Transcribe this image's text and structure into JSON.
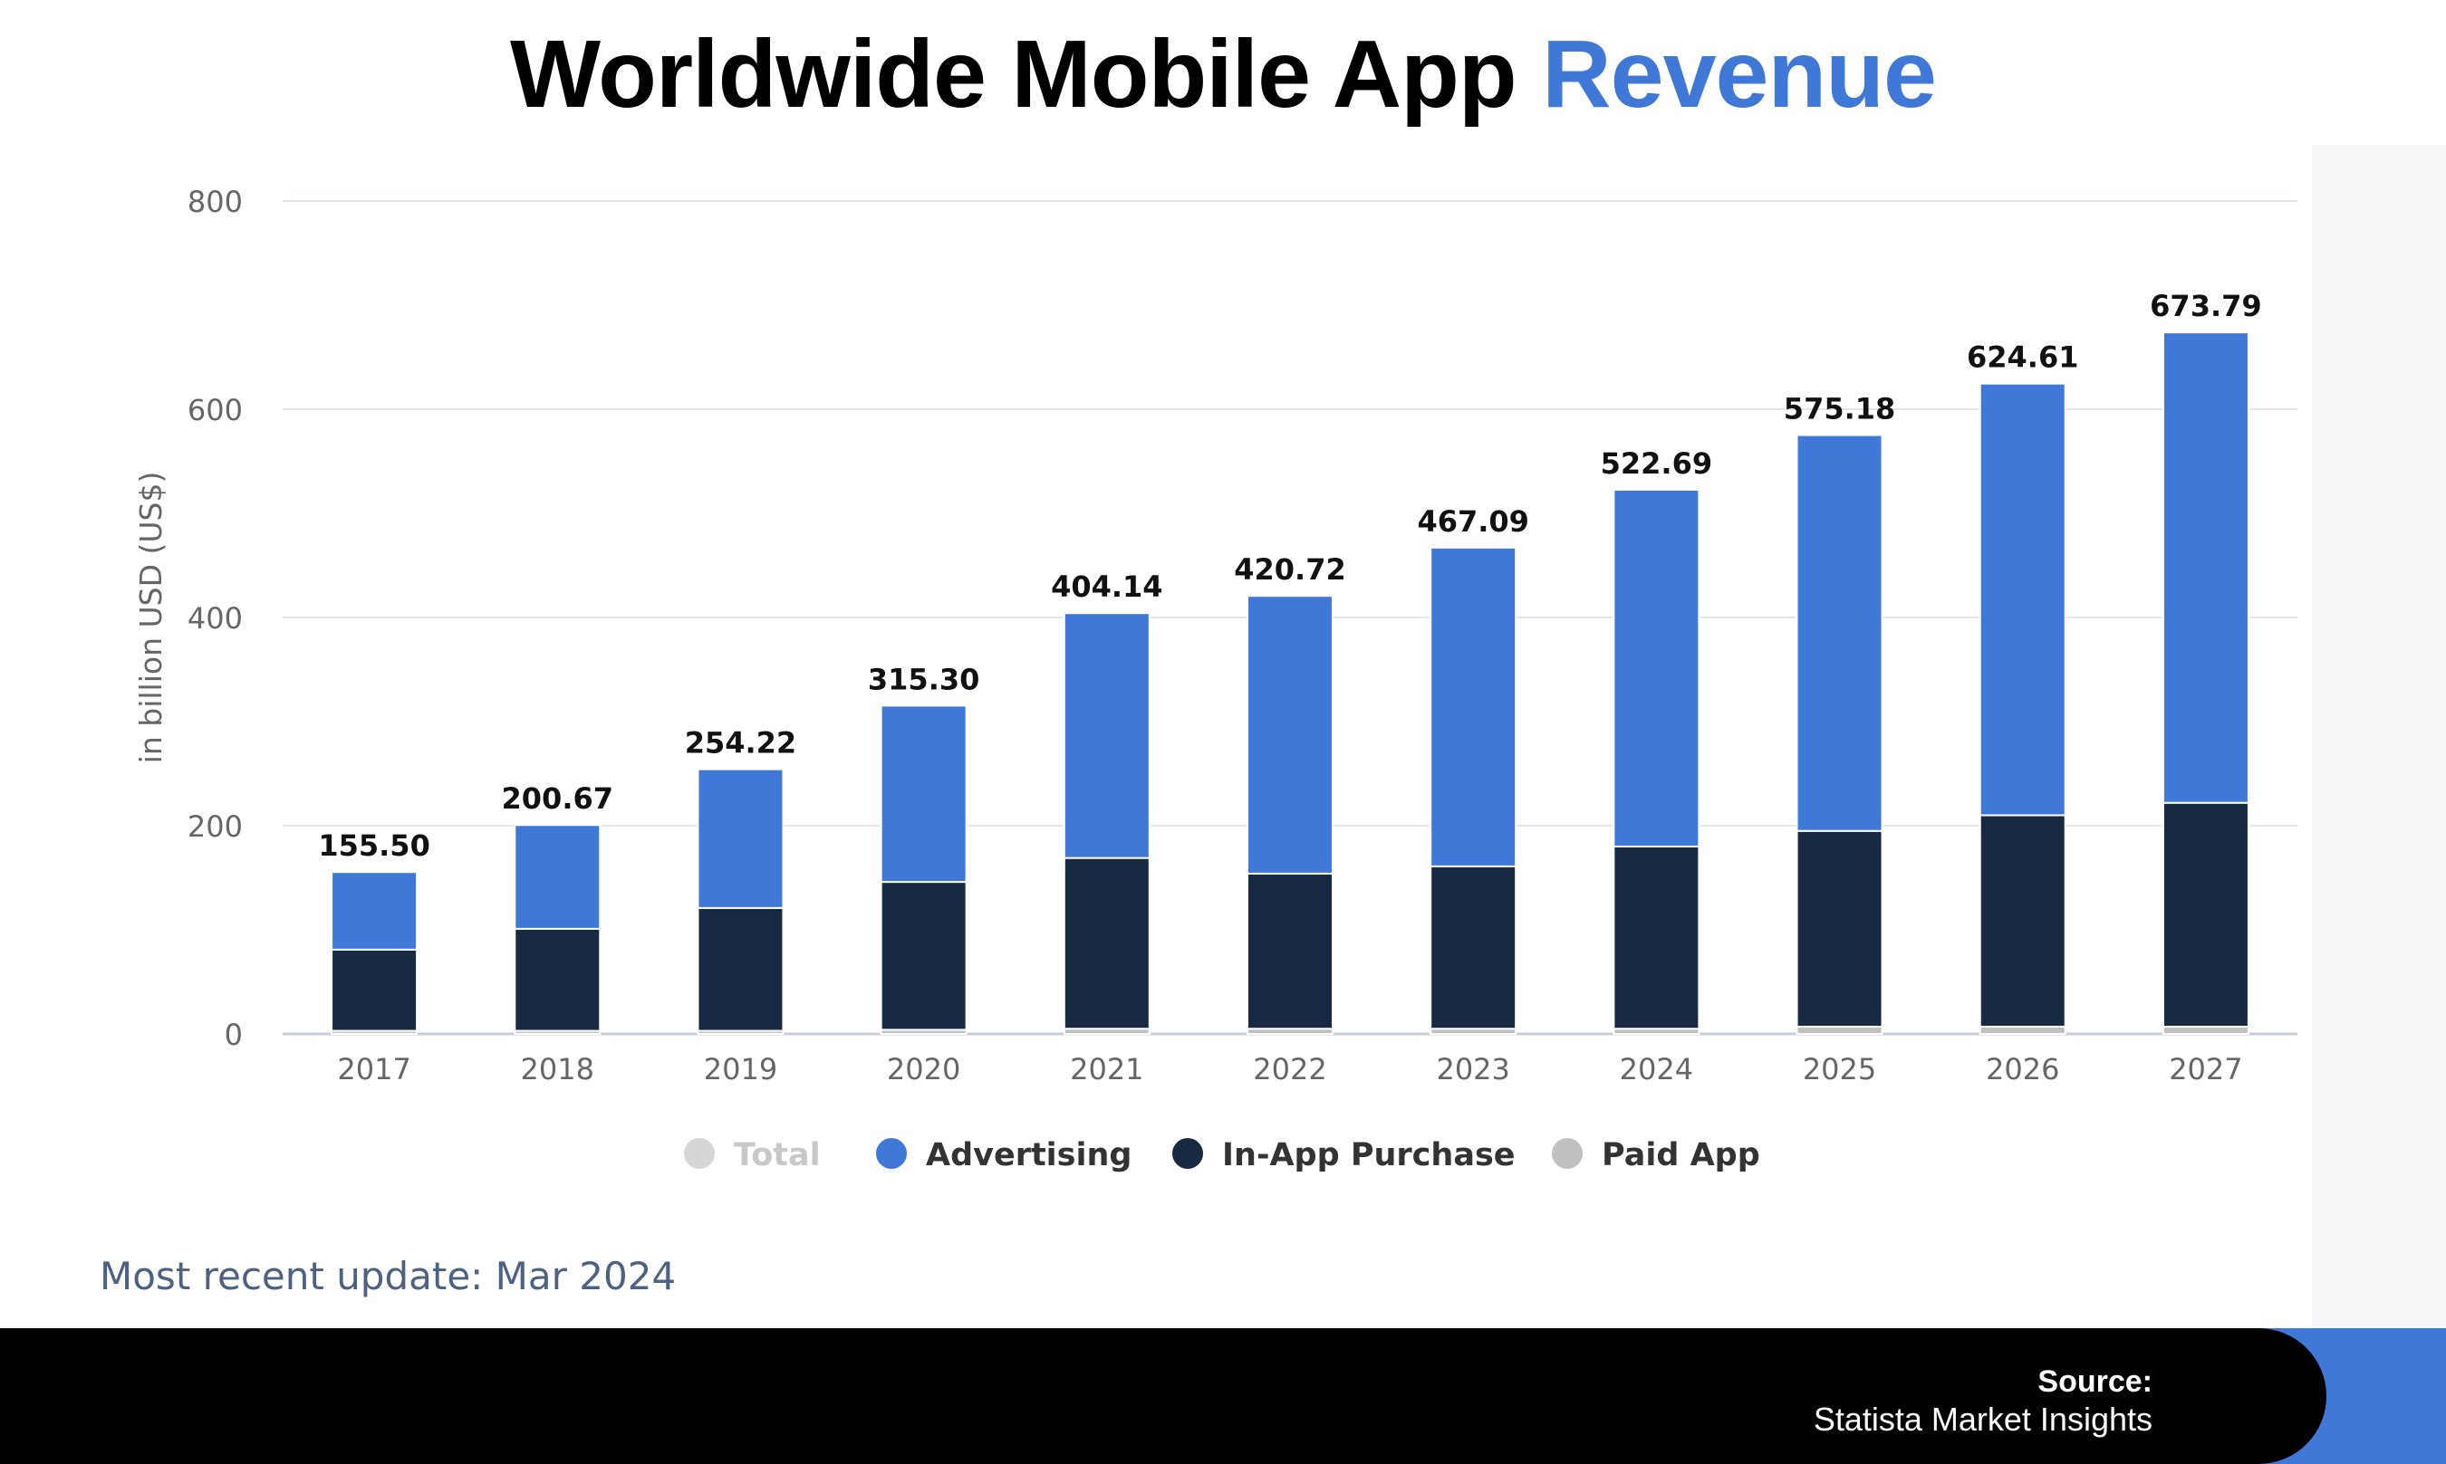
{
  "title": {
    "main": "Worldwide Mobile App",
    "accent": "Revenue"
  },
  "colors": {
    "advertising": "#3f78d6",
    "in_app": "#172a42",
    "paid": "#c0c0c0",
    "total_legend": "#d6d6d6",
    "accent": "#3f78d6"
  },
  "chart_data": {
    "type": "bar",
    "stacked": true,
    "ylabel": "in billion USD (US$)",
    "ylim": [
      0,
      800
    ],
    "yticks": [
      0,
      200,
      400,
      600,
      800
    ],
    "categories": [
      "2017",
      "2018",
      "2019",
      "2020",
      "2021",
      "2022",
      "2023",
      "2024",
      "2025",
      "2026",
      "2027"
    ],
    "series": [
      {
        "name": "Paid App",
        "values": [
          3,
          3,
          3,
          4,
          5,
          5,
          5,
          5,
          7,
          7,
          7
        ]
      },
      {
        "name": "In-App Purchase",
        "values": [
          78,
          98,
          118,
          142,
          164,
          149,
          156,
          175,
          188,
          203,
          215
        ]
      },
      {
        "name": "Advertising",
        "values": [
          74.5,
          99.67,
          133.22,
          169.3,
          235.14,
          266.72,
          306.09,
          342.69,
          380.18,
          414.61,
          451.79
        ]
      }
    ],
    "totals": [
      155.5,
      200.67,
      254.22,
      315.3,
      404.14,
      420.72,
      467.09,
      522.69,
      575.18,
      624.61,
      673.79
    ],
    "total_labels": [
      "155.50",
      "200.67",
      "254.22",
      "315.30",
      "404.14",
      "420.72",
      "467.09",
      "522.69",
      "575.18",
      "624.61",
      "673.79"
    ],
    "legend": [
      {
        "name": "Total",
        "muted": true
      },
      {
        "name": "Advertising",
        "muted": false
      },
      {
        "name": "In-App Purchase",
        "muted": false
      },
      {
        "name": "Paid App",
        "muted": false
      }
    ],
    "legend_position": "bottom-center"
  },
  "update_text": "Most recent update: Mar 2024",
  "footer": {
    "source_label": "Source:",
    "source_value": "Statista Market Insights"
  }
}
